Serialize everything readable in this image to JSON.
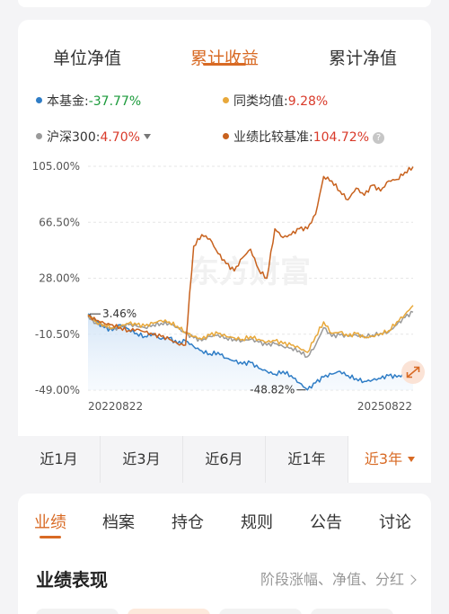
{
  "tabs": [
    "单位净值",
    "累计收益",
    "累计净值"
  ],
  "active_tab": "累计收益",
  "legend": {
    "fund": {
      "label": "本基金:",
      "value": "-37.77%",
      "color": "#2f7dc6"
    },
    "peer": {
      "label": "同类均值:",
      "value": "9.28%",
      "color": "#e8a83a"
    },
    "csi300": {
      "label": "沪深300:",
      "value": "4.70%",
      "color": "#9a9a9a"
    },
    "benchmark": {
      "label": "业绩比较基准:",
      "value": "104.72%",
      "color": "#c8621e"
    },
    "help_icon": "?"
  },
  "chart_data": {
    "type": "line",
    "y_ticks": [
      "105.00%",
      "66.50%",
      "28.00%",
      "-10.50%",
      "-49.00%"
    ],
    "ylim": [
      -49,
      105
    ],
    "x_start": "20220822",
    "x_end": "20250822",
    "watermark": "东方财富",
    "annotations": {
      "high": "3.46%",
      "low": "-48.82%"
    },
    "series": [
      {
        "name": "本基金",
        "color": "#2f7dc6",
        "area": true,
        "values": [
          3.46,
          -2,
          -6,
          -8,
          -4,
          -7,
          -10,
          -12,
          -10,
          -14,
          -13,
          -17,
          -15,
          -19,
          -22,
          -24,
          -23,
          -27,
          -29,
          -31,
          -30,
          -34,
          -36,
          -38,
          -36,
          -39,
          -44,
          -48.82,
          -44,
          -40,
          -38,
          -36,
          -39,
          -41,
          -43,
          -42,
          -41,
          -39,
          -40,
          -38,
          -37.77
        ]
      },
      {
        "name": "沪深300",
        "color": "#9a9a9a",
        "area": false,
        "values": [
          2,
          -3,
          -5,
          -7,
          -6,
          -4,
          -5,
          -6,
          -4,
          -3,
          -3,
          -6,
          -10,
          -13,
          -15,
          -12,
          -11,
          -13,
          -14,
          -15,
          -14,
          -16,
          -18,
          -17,
          -19,
          -20,
          -22,
          -26,
          -18,
          -6,
          -12,
          -11,
          -12,
          -11,
          -12,
          -11,
          -10,
          -9,
          -4,
          1,
          4.7
        ]
      },
      {
        "name": "同类均值",
        "color": "#e8a83a",
        "area": false,
        "values": [
          3,
          -2,
          -4,
          -6,
          -5,
          -3,
          -4,
          -5,
          -3,
          -1,
          -2,
          -5,
          -9,
          -12,
          -14,
          -11,
          -10,
          -12,
          -13,
          -14,
          -12,
          -14,
          -16,
          -15,
          -17,
          -18,
          -20,
          -23,
          -12,
          -2,
          -10,
          -9,
          -12,
          -10,
          -13,
          -12,
          -10,
          -8,
          -2,
          3,
          9.28
        ]
      },
      {
        "name": "业绩比较基准",
        "color": "#c8621e",
        "area": false,
        "values": [
          2,
          -1,
          -3,
          -4,
          -6,
          -8,
          -7,
          -9,
          -11,
          -12,
          -14,
          -17,
          -18,
          50,
          58,
          55,
          45,
          38,
          33,
          42,
          48,
          34,
          28,
          62,
          56,
          58,
          62,
          62,
          72,
          98,
          95,
          88,
          82,
          90,
          85,
          92,
          88,
          95,
          96,
          101,
          104.72
        ]
      }
    ]
  },
  "periods": [
    "近1月",
    "近3月",
    "近6月",
    "近1年",
    "近3年"
  ],
  "active_period": "近3年",
  "nav_tabs": [
    "业绩",
    "档案",
    "持仓",
    "规则",
    "公告",
    "讨论"
  ],
  "active_nav": "业绩",
  "section": {
    "title": "业绩表现",
    "link": "阶段涨幅、净值、分红"
  }
}
